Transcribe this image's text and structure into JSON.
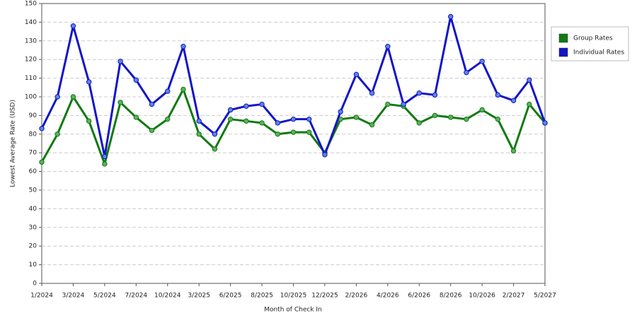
{
  "chart_data": {
    "type": "line",
    "x_label": "Month of Check In",
    "y_label": "Lowest Average Rate (USD)",
    "categories": [
      "1/2024",
      null,
      "3/2024",
      null,
      "5/2024",
      null,
      "7/2024",
      null,
      "10/2024",
      null,
      "3/2025",
      null,
      "6/2025",
      null,
      "8/2025",
      null,
      "10/2025",
      null,
      "12/2025",
      null,
      "2/2026",
      null,
      "4/2026",
      null,
      "6/2026",
      null,
      "8/2026",
      null,
      "10/2026",
      null,
      "2/2027",
      null,
      "5/2027"
    ],
    "series": [
      {
        "name": "Group Rates",
        "color": "#117a11",
        "marker": "#5fae5f",
        "values": [
          65,
          80,
          100,
          87,
          64,
          97,
          89,
          82,
          88,
          104,
          80,
          72,
          88,
          87,
          86,
          80,
          81,
          81,
          70,
          88,
          89,
          85,
          96,
          95,
          86,
          90,
          89,
          88,
          93,
          88,
          71,
          96,
          86
        ]
      },
      {
        "name": "Individual Rates",
        "color": "#1414c8",
        "marker": "#5a86e0",
        "values": [
          83,
          100,
          138,
          108,
          68,
          119,
          109,
          96,
          103,
          127,
          87,
          80,
          93,
          95,
          96,
          86,
          88,
          88,
          69,
          92,
          112,
          102,
          127,
          96,
          102,
          101,
          143,
          113,
          119,
          101,
          98,
          109,
          86
        ]
      }
    ],
    "ylim": [
      0,
      150
    ],
    "yticks": [
      0,
      10,
      20,
      30,
      40,
      50,
      60,
      70,
      80,
      90,
      100,
      110,
      120,
      130,
      140,
      150
    ],
    "grid": true,
    "legend": "right"
  }
}
